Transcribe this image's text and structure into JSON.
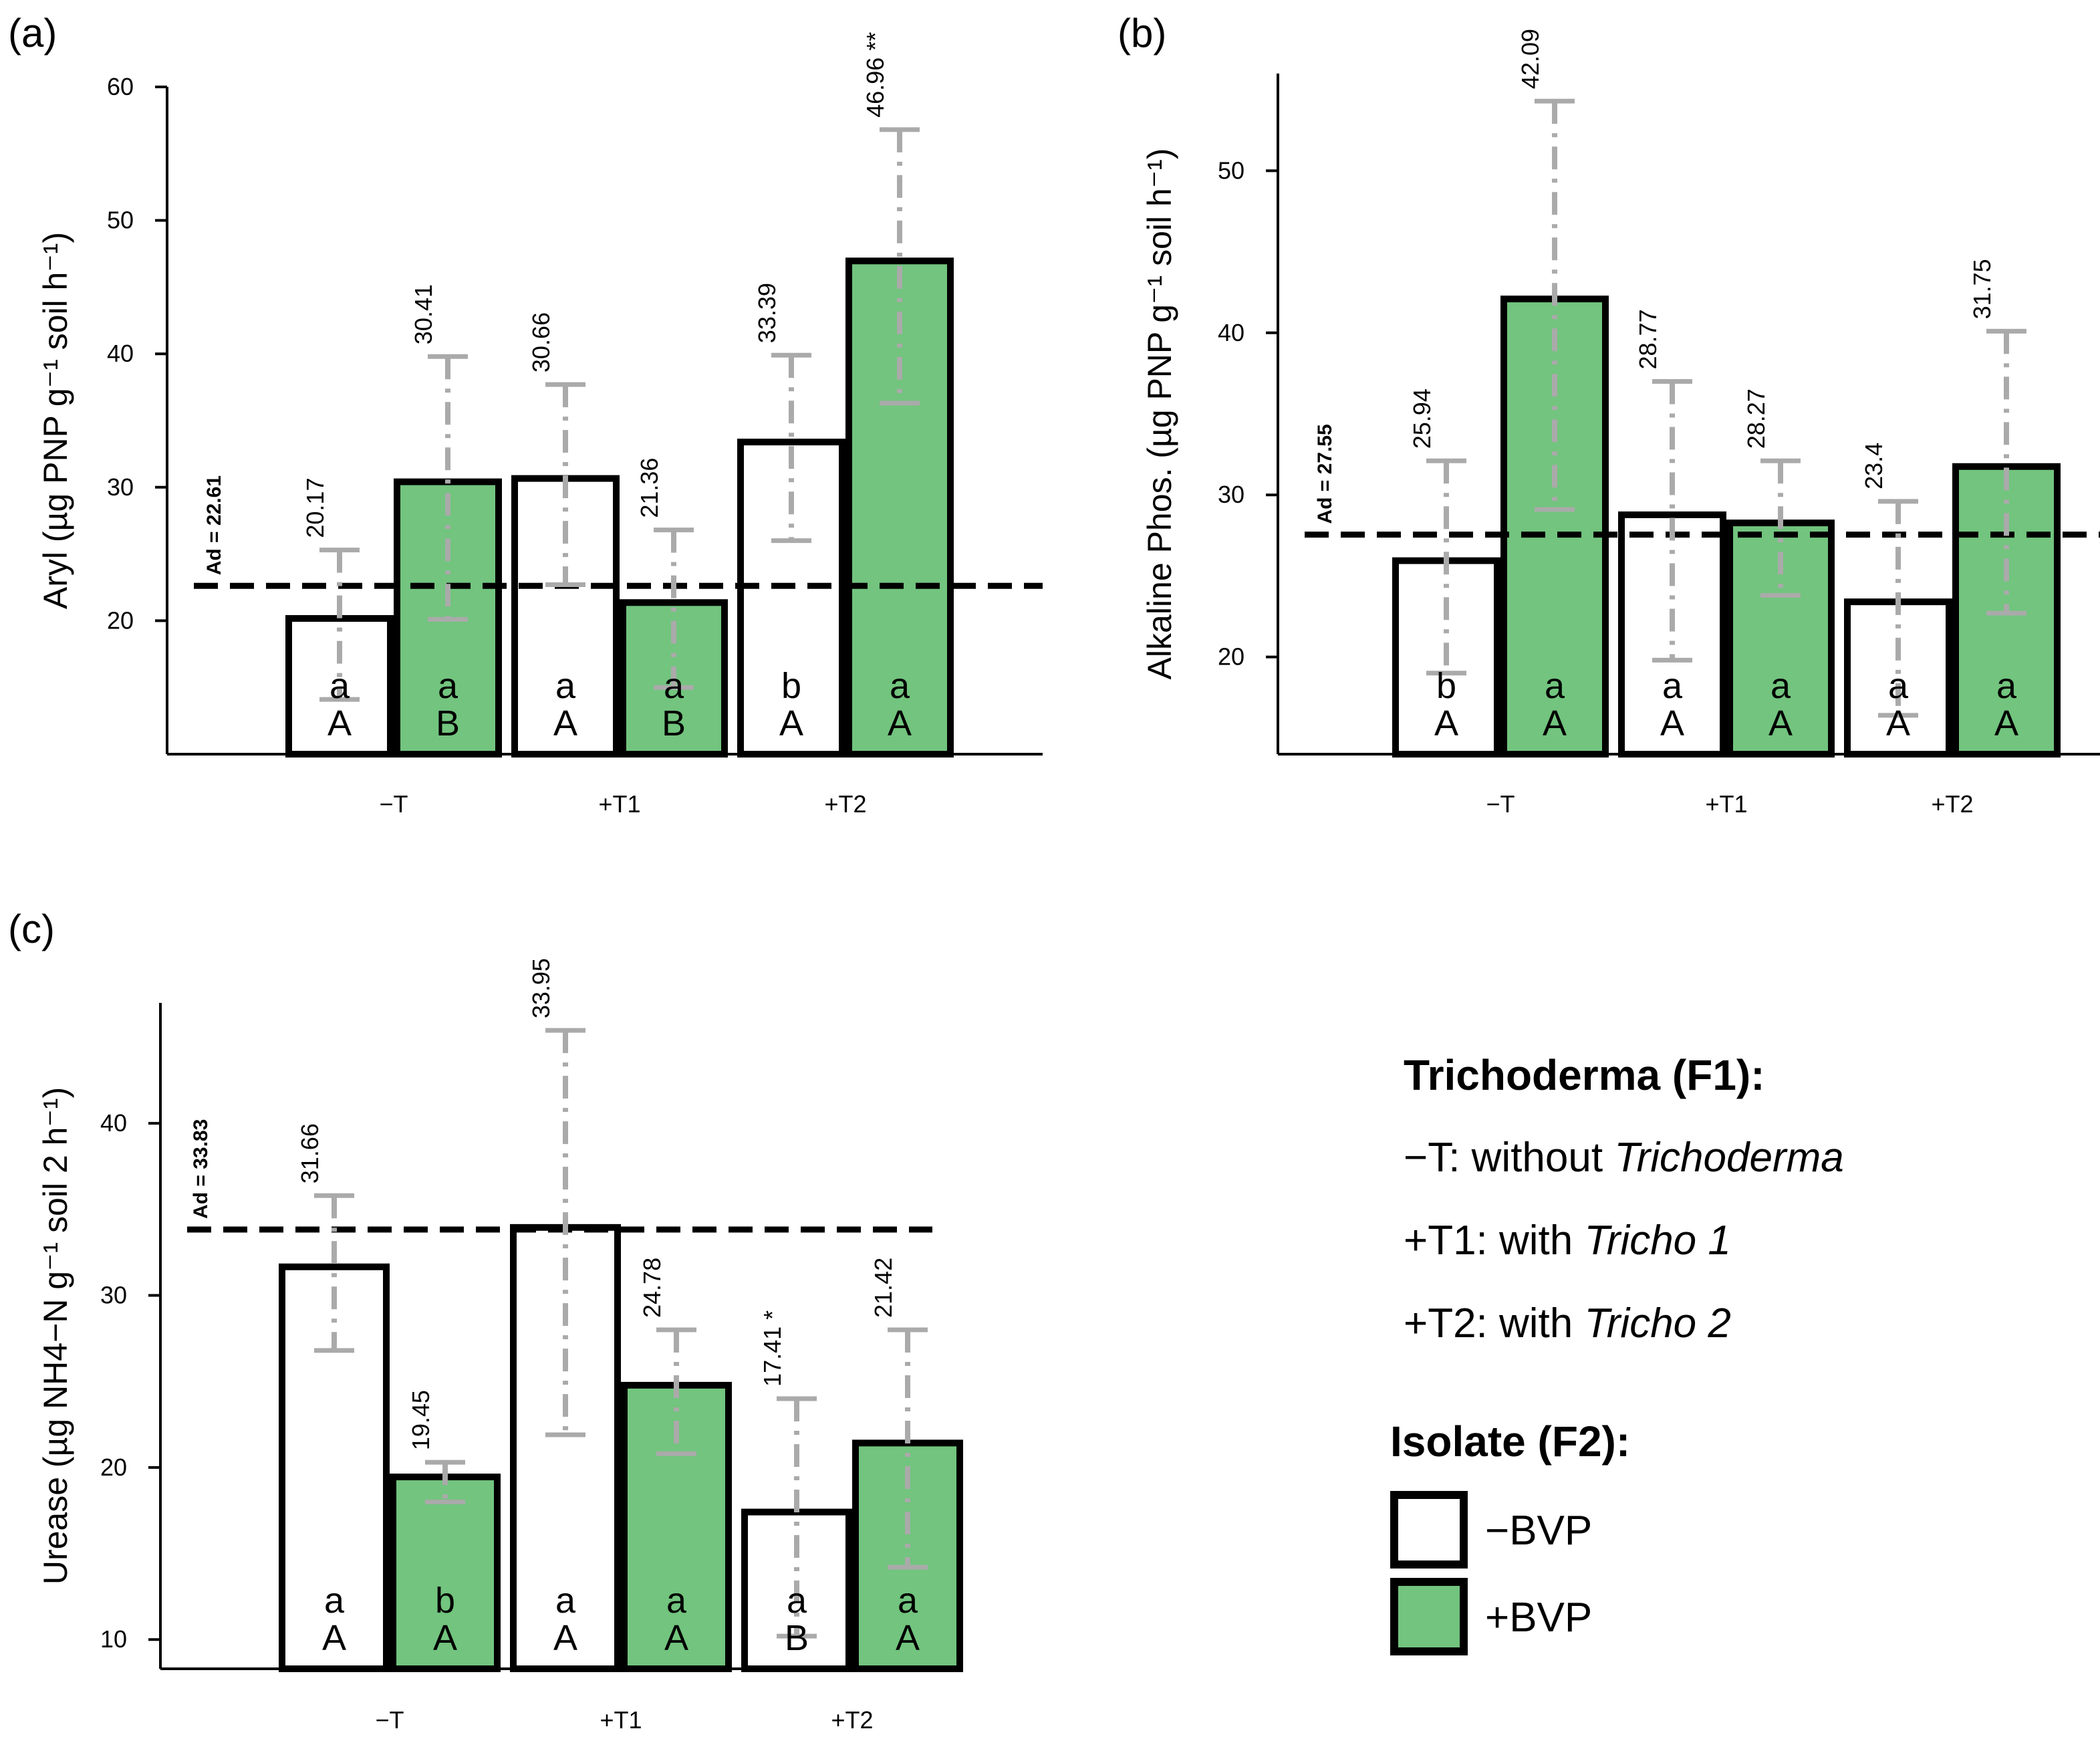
{
  "colors": {
    "control": "#ffffff",
    "bvp": "#72c47e",
    "err": "#aaaaaa",
    "edge": "#000000"
  },
  "chart_data": [
    {
      "panel": "(a)",
      "type": "bar",
      "ylabel": "Aryl (µg PNP g⁻¹ soil h⁻¹)",
      "ylim": [
        10,
        60
      ],
      "yticks": [
        20,
        30,
        40,
        50,
        60
      ],
      "categories": [
        "−T",
        "+T1",
        "+T2"
      ],
      "ad_value": 22.61,
      "ad_label": "Ad = 22.61",
      "bars": [
        {
          "category": "−T",
          "series": "−BVP",
          "value": 20.17,
          "label": "20.17",
          "err_low": 14.1,
          "err_high": 25.3,
          "letter_lower": "a",
          "letter_upper": "A"
        },
        {
          "category": "−T",
          "series": "+BVP",
          "value": 30.41,
          "label": "30.41",
          "err_low": 20.1,
          "err_high": 39.8,
          "letter_lower": "a",
          "letter_upper": "B"
        },
        {
          "category": "+T1",
          "series": "−BVP",
          "value": 30.66,
          "label": "30.66",
          "err_low": 22.7,
          "err_high": 37.7,
          "letter_lower": "a",
          "letter_upper": "A"
        },
        {
          "category": "+T1",
          "series": "+BVP",
          "value": 21.36,
          "label": "21.36",
          "err_low": 15.0,
          "err_high": 26.8,
          "letter_lower": "a",
          "letter_upper": "B"
        },
        {
          "category": "+T2",
          "series": "−BVP",
          "value": 33.39,
          "label": "33.39",
          "err_low": 26.0,
          "err_high": 39.9,
          "letter_lower": "b",
          "letter_upper": "A"
        },
        {
          "category": "+T2",
          "series": "+BVP",
          "value": 46.96,
          "label": "46.96 **",
          "err_low": 36.3,
          "err_high": 56.8,
          "letter_lower": "a",
          "letter_upper": "A"
        }
      ]
    },
    {
      "panel": "(b)",
      "type": "bar",
      "ylabel": "Alkaline Phos. (µg PNP g⁻¹ soil h⁻¹)",
      "ylim": [
        14,
        56
      ],
      "yticks": [
        20,
        30,
        40,
        50
      ],
      "categories": [
        "−T",
        "+T1",
        "+T2"
      ],
      "ad_value": 27.55,
      "ad_label": "Ad = 27.55",
      "bars": [
        {
          "category": "−T",
          "series": "−BVP",
          "value": 25.94,
          "label": "25.94",
          "err_low": 19.0,
          "err_high": 32.1,
          "letter_lower": "b",
          "letter_upper": "A"
        },
        {
          "category": "−T",
          "series": "+BVP",
          "value": 42.09,
          "label": "42.09",
          "err_low": 29.1,
          "err_high": 54.3,
          "letter_lower": "a",
          "letter_upper": "A"
        },
        {
          "category": "+T1",
          "series": "−BVP",
          "value": 28.77,
          "label": "28.77",
          "err_low": 19.8,
          "err_high": 37.0,
          "letter_lower": "a",
          "letter_upper": "A"
        },
        {
          "category": "+T1",
          "series": "+BVP",
          "value": 28.27,
          "label": "28.27",
          "err_low": 23.8,
          "err_high": 32.1,
          "letter_lower": "a",
          "letter_upper": "A"
        },
        {
          "category": "+T2",
          "series": "−BVP",
          "value": 23.4,
          "label": "23.4",
          "err_low": 16.4,
          "err_high": 29.6,
          "letter_lower": "a",
          "letter_upper": "A"
        },
        {
          "category": "+T2",
          "series": "+BVP",
          "value": 31.75,
          "label": "31.75",
          "err_low": 22.7,
          "err_high": 40.1,
          "letter_lower": "a",
          "letter_upper": "A"
        }
      ]
    },
    {
      "panel": "(c)",
      "type": "bar",
      "ylabel": "Urease (µg NH4−N g⁻¹ soil 2 h⁻¹)",
      "ylim": [
        8.3,
        47
      ],
      "yticks": [
        10,
        20,
        30,
        40
      ],
      "categories": [
        "−T",
        "+T1",
        "+T2"
      ],
      "ad_value": 33.83,
      "ad_label": "Ad = 33.83",
      "bars": [
        {
          "category": "−T",
          "series": "−BVP",
          "value": 31.66,
          "label": "31.66",
          "err_low": 26.8,
          "err_high": 35.8,
          "letter_lower": "a",
          "letter_upper": "A"
        },
        {
          "category": "−T",
          "series": "+BVP",
          "value": 19.45,
          "label": "19.45",
          "err_low": 18.0,
          "err_high": 20.3,
          "letter_lower": "b",
          "letter_upper": "A"
        },
        {
          "category": "+T1",
          "series": "−BVP",
          "value": 33.95,
          "label": "33.95",
          "err_low": 21.9,
          "err_high": 45.4,
          "letter_lower": "a",
          "letter_upper": "A"
        },
        {
          "category": "+T1",
          "series": "+BVP",
          "value": 24.78,
          "label": "24.78",
          "err_low": 20.8,
          "err_high": 28.0,
          "letter_lower": "a",
          "letter_upper": "A"
        },
        {
          "category": "+T2",
          "series": "−BVP",
          "value": 17.41,
          "label": "17.41 *",
          "err_low": 10.2,
          "err_high": 24.0,
          "letter_lower": "a",
          "letter_upper": "B"
        },
        {
          "category": "+T2",
          "series": "+BVP",
          "value": 21.42,
          "label": "21.42",
          "err_low": 14.2,
          "err_high": 28.0,
          "letter_lower": "a",
          "letter_upper": "A"
        }
      ]
    }
  ],
  "legend": {
    "f1_title": "Trichoderma (F1):",
    "f1_items": [
      {
        "code": "−T: without ",
        "desc": "Trichoderma"
      },
      {
        "code": "+T1: with ",
        "desc": "Tricho 1"
      },
      {
        "code": "+T2: with ",
        "desc": "Tricho 2"
      }
    ],
    "f2_title": "Isolate (F2):",
    "f2_items": [
      {
        "label": "−BVP",
        "color_key": "control"
      },
      {
        "label": "+BVP",
        "color_key": "bvp"
      }
    ]
  }
}
